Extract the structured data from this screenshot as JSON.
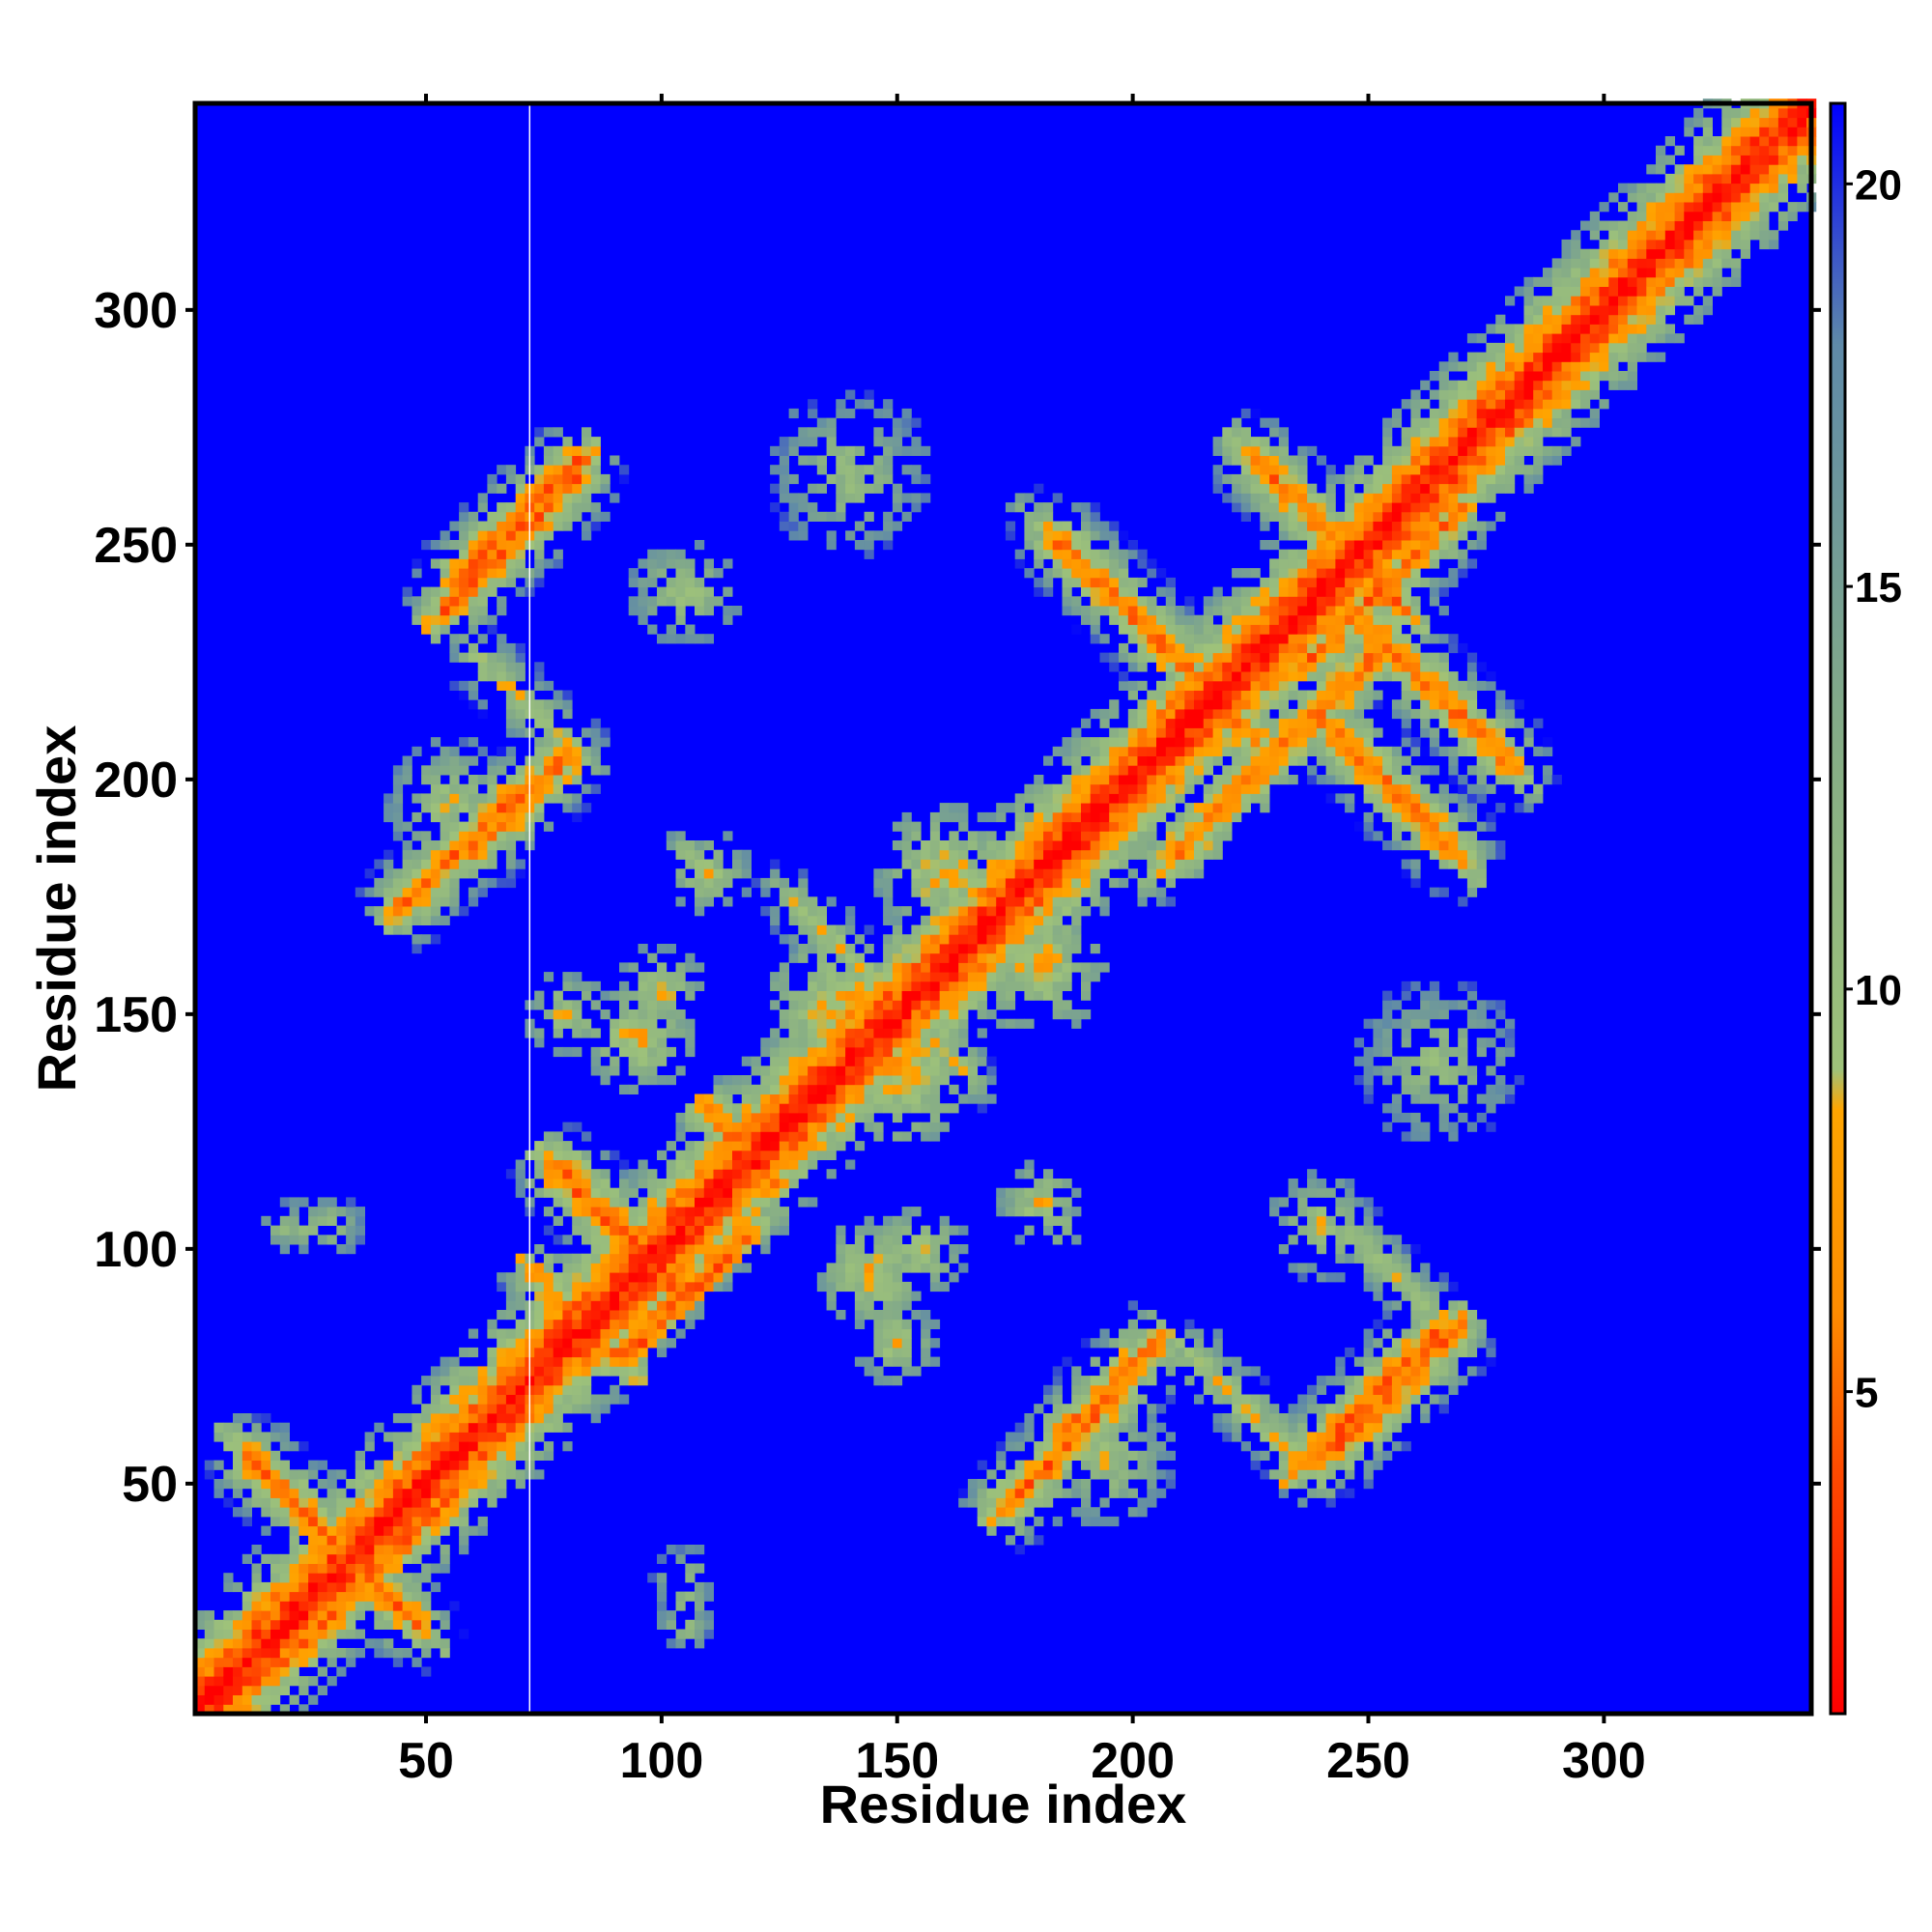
{
  "chart_data": {
    "type": "heatmap",
    "title": "",
    "xlabel": "Residue index",
    "ylabel": "Residue index",
    "xlim": [
      1,
      344
    ],
    "ylim": [
      1,
      344
    ],
    "x_ticks": [
      50,
      100,
      150,
      200,
      250,
      300
    ],
    "y_ticks": [
      50,
      100,
      150,
      200,
      250,
      300
    ],
    "x_tick_labels": [
      "50",
      "100",
      "150",
      "200",
      "250",
      "300"
    ],
    "y_tick_labels": [
      "50",
      "100",
      "150",
      "200",
      "250",
      "300"
    ],
    "matrix_symmetric": true,
    "value_description": "distance between residues",
    "colorbar": {
      "range": [
        1,
        21
      ],
      "ticks": [
        5,
        10,
        15,
        20
      ],
      "tick_labels": [
        "5",
        "10",
        "15",
        "20"
      ],
      "colors": [
        {
          "value": 1,
          "color": "#ff0000"
        },
        {
          "value": 4,
          "color": "#ff4a00"
        },
        {
          "value": 6,
          "color": "#ff8c00"
        },
        {
          "value": 8.5,
          "color": "#ffa500"
        },
        {
          "value": 9,
          "color": "#9ec27a"
        },
        {
          "value": 13,
          "color": "#86ad86"
        },
        {
          "value": 18,
          "color": "#5f8aa8"
        },
        {
          "value": 21,
          "color": "#0000ff"
        }
      ]
    },
    "background_color": "#0000ff",
    "grid": false,
    "legend": "colorbar-right",
    "contact_features": [
      {
        "kind": "diagonal",
        "i_start": 1,
        "i_end": 344,
        "min_distance": 1
      },
      {
        "kind": "antiparallel",
        "center_i": 90,
        "center_j": 105,
        "half_length": 17,
        "min_distance": 4
      },
      {
        "kind": "antiparallel",
        "center_i": 117,
        "center_j": 122,
        "half_length": 10,
        "min_distance": 5
      },
      {
        "kind": "antiparallel",
        "center_i": 83,
        "center_j": 85,
        "half_length": 14,
        "min_distance": 6
      },
      {
        "kind": "antiparallel",
        "center_i": 30,
        "center_j": 38,
        "half_length": 25,
        "min_distance": 5
      },
      {
        "kind": "antiparallel",
        "center_i": 146,
        "center_j": 156,
        "half_length": 25,
        "min_distance": 9
      },
      {
        "kind": "antiparallel",
        "center_i": 205,
        "center_j": 230,
        "half_length": 30,
        "min_distance": 5
      },
      {
        "kind": "antiparallel",
        "center_i": 241,
        "center_j": 253,
        "half_length": 22,
        "min_distance": 5
      },
      {
        "kind": "antiparallel",
        "center_i": 255,
        "center_j": 198,
        "half_length": 20,
        "min_distance": 5
      },
      {
        "kind": "antiparallel",
        "center_i": 262,
        "center_j": 221,
        "half_length": 25,
        "min_distance": 5
      },
      {
        "kind": "parallel",
        "center_i": 70,
        "center_j": 255,
        "half_length": 18,
        "min_distance": 4
      },
      {
        "kind": "parallel",
        "center_i": 70,
        "center_j": 195,
        "half_length": 14,
        "min_distance": 5
      },
      {
        "kind": "antiparallel",
        "center_i": 72,
        "center_j": 215,
        "half_length": 15,
        "min_distance": 9
      },
      {
        "kind": "parallel",
        "center_i": 185,
        "center_j": 57,
        "half_length": 18,
        "min_distance": 5
      },
      {
        "kind": "parallel",
        "center_i": 250,
        "center_j": 68,
        "half_length": 20,
        "min_distance": 5
      },
      {
        "kind": "antiparallel",
        "center_i": 225,
        "center_j": 65,
        "half_length": 18,
        "min_distance": 9
      },
      {
        "kind": "antiparallel",
        "center_i": 255,
        "center_j": 95,
        "half_length": 12,
        "min_distance": 10
      },
      {
        "kind": "patch",
        "center_i": 105,
        "center_j": 240,
        "radius": 12,
        "min_distance": 9
      },
      {
        "kind": "patch",
        "center_i": 110,
        "center_j": 180,
        "radius": 9,
        "min_distance": 8
      },
      {
        "kind": "patch",
        "center_i": 100,
        "center_j": 155,
        "radius": 10,
        "min_distance": 8
      },
      {
        "kind": "patch",
        "center_i": 145,
        "center_j": 95,
        "radius": 12,
        "min_distance": 7
      },
      {
        "kind": "patch",
        "center_i": 150,
        "center_j": 140,
        "radius": 18,
        "min_distance": 6
      },
      {
        "kind": "patch",
        "center_i": 160,
        "center_j": 180,
        "radius": 15,
        "min_distance": 7
      },
      {
        "kind": "patch",
        "center_i": 195,
        "center_j": 55,
        "radius": 14,
        "min_distance": 9
      },
      {
        "kind": "patch",
        "center_i": 25,
        "center_j": 105,
        "radius": 6,
        "min_distance": 10
      },
      {
        "kind": "patch",
        "center_i": 105,
        "center_j": 20,
        "radius": 6,
        "min_distance": 10
      },
      {
        "kind": "patch",
        "center_i": 185,
        "center_j": 105,
        "radius": 5,
        "min_distance": 9
      },
      {
        "kind": "patch",
        "center_i": 140,
        "center_j": 265,
        "radius": 18,
        "min_distance": 10
      },
      {
        "kind": "patch",
        "center_i": 265,
        "center_j": 140,
        "radius": 18,
        "min_distance": 10
      },
      {
        "kind": "patch",
        "center_i": 105,
        "center_j": 30,
        "radius": 7,
        "min_distance": 10
      },
      {
        "kind": "patch",
        "center_i": 150,
        "center_j": 80,
        "radius": 9,
        "min_distance": 8
      },
      {
        "kind": "patch",
        "center_i": 245,
        "center_j": 240,
        "radius": 10,
        "min_distance": 6
      }
    ],
    "artifact_line_x": 72
  }
}
